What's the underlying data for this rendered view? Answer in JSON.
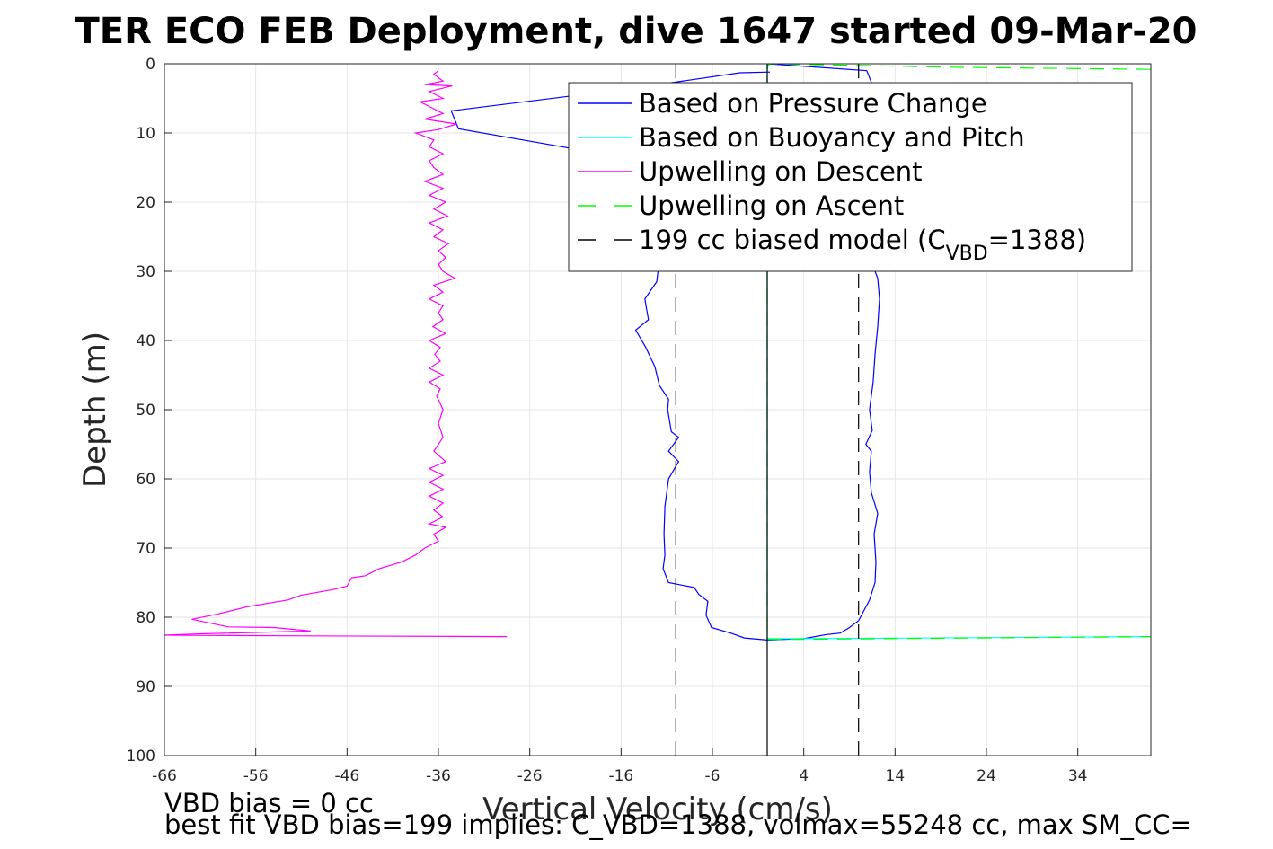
{
  "chart_data": {
    "type": "line",
    "title": "TER ECO FEB Deployment, dive 1647 started 09-Mar-20",
    "xlabel": "Vertical Velocity (cm/s)",
    "ylabel": "Depth (m)",
    "xlim": [
      -66,
      42
    ],
    "ylim": [
      0,
      100
    ],
    "y_reversed": true,
    "grid": true,
    "x_ticks": [
      -66,
      -56,
      -46,
      -36,
      -26,
      -16,
      -6,
      4,
      14,
      24,
      34
    ],
    "y_ticks": [
      0,
      10,
      20,
      30,
      40,
      50,
      60,
      70,
      80,
      90,
      100
    ],
    "legend_placement": "top-right",
    "legend": [
      {
        "label": "Based on Pressure Change",
        "color": "#0000ff",
        "dash": "solid"
      },
      {
        "label": "Based on Buoyancy and Pitch",
        "color": "#00ffff",
        "dash": "solid"
      },
      {
        "label": "Upwelling on Descent",
        "color": "#ff00ff",
        "dash": "solid"
      },
      {
        "label": "Upwelling on Ascent",
        "color": "#00ff00",
        "dash": "dashed"
      },
      {
        "label": "199 cc biased model (C",
        "label_sub": "VBD",
        "label_tail": "=1388)",
        "color": "#000000",
        "dash": "dashed"
      }
    ],
    "series": [
      {
        "name": "Based on Pressure Change",
        "color": "#0000ff",
        "dash": "solid",
        "points": [
          [
            0.3,
            1.2
          ],
          [
            -3,
            1.3
          ],
          [
            -15,
            3.6
          ],
          [
            -34.6,
            6.8
          ],
          [
            -33.8,
            9.4
          ],
          [
            -22,
            12.1
          ],
          [
            -14,
            14.2
          ],
          [
            -11,
            20
          ],
          [
            -11.5,
            25
          ],
          [
            -12.1,
            31.5
          ],
          [
            -13.4,
            34
          ],
          [
            -13,
            37
          ],
          [
            -14.4,
            38.5
          ],
          [
            -13.3,
            41
          ],
          [
            -12.3,
            43.8
          ],
          [
            -11.8,
            46.5
          ],
          [
            -10.8,
            48.5
          ],
          [
            -10.9,
            50
          ],
          [
            -10.5,
            53.2
          ],
          [
            -9.7,
            54
          ],
          [
            -10.8,
            56
          ],
          [
            -9.7,
            57.5
          ],
          [
            -10.8,
            60
          ],
          [
            -11.2,
            64
          ],
          [
            -11.3,
            68
          ],
          [
            -11.2,
            71
          ],
          [
            -11.4,
            73
          ],
          [
            -10.8,
            75
          ],
          [
            -8,
            75.7
          ],
          [
            -7.5,
            76.7
          ],
          [
            -6.5,
            77.7
          ],
          [
            -6.7,
            79.7
          ],
          [
            -6.1,
            81.5
          ],
          [
            -4,
            82.3
          ],
          [
            -2.5,
            83
          ],
          [
            0,
            83.3
          ],
          [
            4,
            83.1
          ],
          [
            6.5,
            82.5
          ],
          [
            8,
            82.3
          ],
          [
            9,
            81.5
          ],
          [
            10,
            80.5
          ],
          [
            11.2,
            77.5
          ],
          [
            11.8,
            75
          ],
          [
            11.9,
            72
          ],
          [
            11.7,
            68
          ],
          [
            12.1,
            65
          ],
          [
            11.4,
            62
          ],
          [
            11.2,
            59
          ],
          [
            11.4,
            56
          ],
          [
            10.8,
            55
          ],
          [
            11.5,
            53
          ],
          [
            11.2,
            50
          ],
          [
            11.6,
            46
          ],
          [
            11.8,
            42
          ],
          [
            12.1,
            38
          ],
          [
            12.3,
            34
          ],
          [
            12.1,
            31
          ],
          [
            11.5,
            29
          ],
          [
            11.8,
            4
          ],
          [
            10.9,
            1
          ],
          [
            0.1,
            0
          ]
        ]
      },
      {
        "name": "Based on Buoyancy and Pitch",
        "color": "#00ffff",
        "dash": "solid",
        "points": [
          [
            0.2,
            0
          ],
          [
            0.1,
            0.2
          ],
          [
            0,
            1
          ],
          [
            0,
            40
          ],
          [
            0,
            83.1
          ],
          [
            4,
            83.1
          ],
          [
            42,
            82.8
          ]
        ]
      },
      {
        "name": "Upwelling on Descent",
        "color": "#ff00ff",
        "dash": "solid",
        "points": [
          [
            -36,
            1
          ],
          [
            -36.5,
            1.5
          ],
          [
            -35.5,
            2.5
          ],
          [
            -37.5,
            3
          ],
          [
            -34.5,
            3.2
          ],
          [
            -37,
            4
          ],
          [
            -35.5,
            5
          ],
          [
            -38,
            5.5
          ],
          [
            -36.5,
            6.5
          ],
          [
            -35.5,
            7.2
          ],
          [
            -37.5,
            8
          ],
          [
            -34,
            8.7
          ],
          [
            -36,
            9.5
          ],
          [
            -38.5,
            10
          ],
          [
            -36.5,
            11
          ],
          [
            -37,
            12
          ],
          [
            -35.5,
            13
          ],
          [
            -37,
            14
          ],
          [
            -36.5,
            15
          ],
          [
            -35.5,
            16
          ],
          [
            -37.5,
            17
          ],
          [
            -35.5,
            18
          ],
          [
            -37,
            19
          ],
          [
            -35.2,
            20
          ],
          [
            -36.5,
            21
          ],
          [
            -35,
            22
          ],
          [
            -37,
            23
          ],
          [
            -35.5,
            24
          ],
          [
            -36.5,
            25
          ],
          [
            -34.9,
            26
          ],
          [
            -36,
            27
          ],
          [
            -35.2,
            28
          ],
          [
            -36,
            29
          ],
          [
            -35.5,
            30
          ],
          [
            -34.2,
            31
          ],
          [
            -36.5,
            32
          ],
          [
            -35.5,
            33
          ],
          [
            -37,
            34
          ],
          [
            -35.5,
            35
          ],
          [
            -36,
            36
          ],
          [
            -35.5,
            37
          ],
          [
            -36.6,
            38
          ],
          [
            -35.2,
            39
          ],
          [
            -37,
            40
          ],
          [
            -35.8,
            41
          ],
          [
            -36.4,
            42
          ],
          [
            -35.8,
            43
          ],
          [
            -37,
            44
          ],
          [
            -35.5,
            45
          ],
          [
            -37,
            46
          ],
          [
            -35.8,
            47
          ],
          [
            -36.2,
            48
          ],
          [
            -35.5,
            50
          ],
          [
            -36,
            52
          ],
          [
            -35.5,
            54
          ],
          [
            -36.5,
            56
          ],
          [
            -35.2,
            57.5
          ],
          [
            -37,
            58.5
          ],
          [
            -35.5,
            59.5
          ],
          [
            -37,
            60.5
          ],
          [
            -35.5,
            61.5
          ],
          [
            -37,
            62.5
          ],
          [
            -35.5,
            63.5
          ],
          [
            -36.5,
            64.5
          ],
          [
            -35.5,
            65.5
          ],
          [
            -37,
            66.5
          ],
          [
            -35.2,
            67
          ],
          [
            -36.5,
            68
          ],
          [
            -36,
            69
          ],
          [
            -37.5,
            70
          ],
          [
            -38.5,
            71
          ],
          [
            -40,
            72
          ],
          [
            -42.5,
            73
          ],
          [
            -44,
            74
          ],
          [
            -45.5,
            74.3
          ],
          [
            -46,
            75.5
          ],
          [
            -47.5,
            76
          ],
          [
            -51,
            76.8
          ],
          [
            -52.5,
            77.5
          ],
          [
            -57,
            78.5
          ],
          [
            -60,
            79.5
          ],
          [
            -63,
            80.3
          ],
          [
            -59,
            81.4
          ],
          [
            -54,
            81.5
          ],
          [
            -50,
            82
          ],
          [
            -62,
            82.4
          ],
          [
            -66,
            82.6
          ],
          [
            -50,
            82.7
          ],
          [
            -28.5,
            82.8
          ]
        ]
      },
      {
        "name": "Upwelling on Ascent",
        "color": "#00ff00",
        "dash": "dashed",
        "points": [
          [
            42,
            0.8
          ],
          [
            20,
            0.5
          ],
          [
            0.5,
            0
          ],
          [
            0,
            0.2
          ],
          [
            0,
            40
          ],
          [
            0,
            83.2
          ],
          [
            4,
            83.2
          ],
          [
            42,
            82.8
          ]
        ]
      },
      {
        "name": "199 cc biased model (CVBD=1388)",
        "color": "#000000",
        "dash": "dashed",
        "points": [
          [
            -10,
            0
          ],
          [
            -10,
            100
          ]
        ]
      },
      {
        "name": "199 cc biased model (CVBD=1388)",
        "color": "#000000",
        "dash": "dashed",
        "points": [
          [
            10,
            0
          ],
          [
            10,
            100
          ]
        ]
      },
      {
        "name": "",
        "color": "#000000",
        "dash": "solid",
        "points": [
          [
            0,
            0
          ],
          [
            0,
            100
          ]
        ]
      }
    ]
  },
  "footnotes": {
    "line1": "VBD bias = 0 cc",
    "line2": "best fit VBD bias=199 implies: C_VBD=1388, volmax=55248 cc, max SM_CC="
  }
}
